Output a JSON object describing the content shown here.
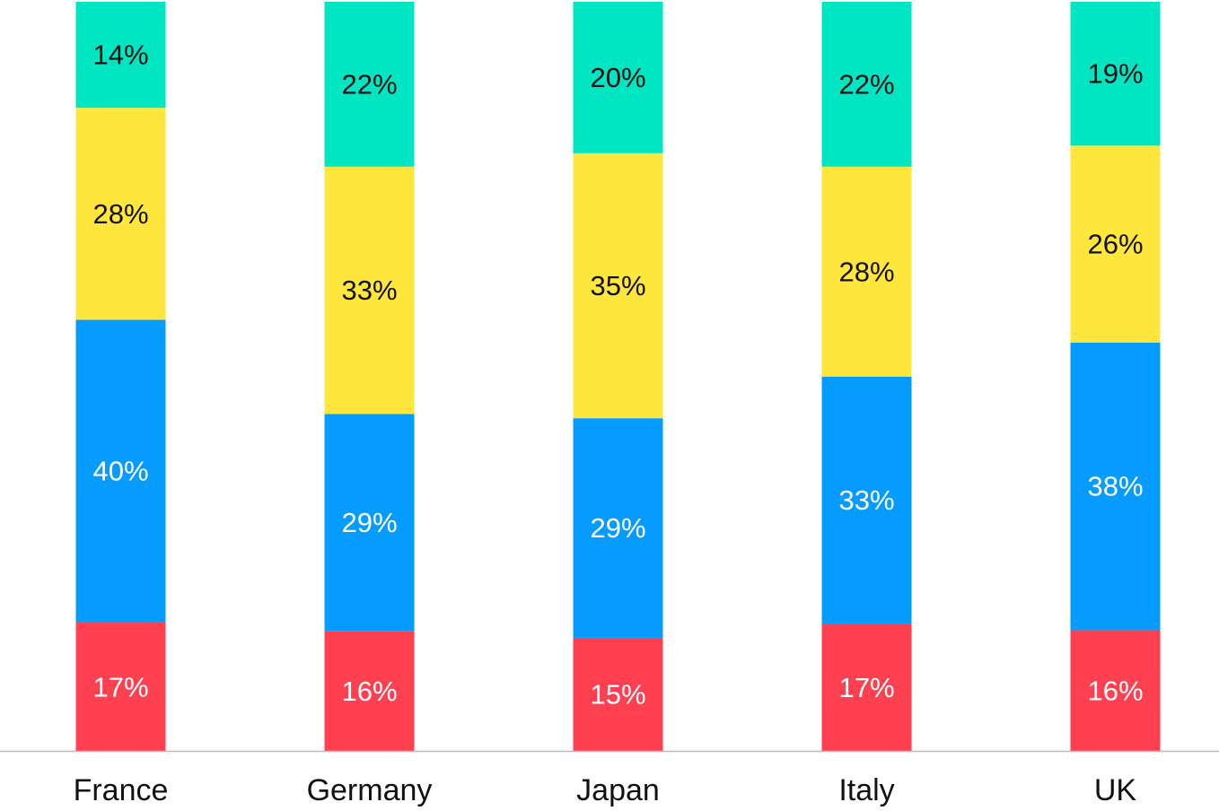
{
  "chart_data": {
    "type": "bar",
    "stacked": true,
    "categories": [
      "France",
      "Germany",
      "Japan",
      "Italy",
      "UK"
    ],
    "series": [
      {
        "color": "#ff4050",
        "label_color": "#ffffff",
        "values": [
          17,
          16,
          15,
          17,
          16
        ],
        "labels": [
          "17%",
          "16%",
          "15%",
          "17%",
          "16%"
        ]
      },
      {
        "color": "#069cff",
        "label_color": "#ffffff",
        "values": [
          40,
          29,
          29,
          33,
          38
        ],
        "labels": [
          "40%",
          "29%",
          "29%",
          "33%",
          "38%"
        ]
      },
      {
        "color": "#ffe63c",
        "label_color": "#111111",
        "values": [
          28,
          33,
          35,
          28,
          26
        ],
        "labels": [
          "28%",
          "33%",
          "35%",
          "28%",
          "26%"
        ]
      },
      {
        "color": "#00e6c3",
        "label_color": "#111111",
        "values": [
          14,
          22,
          20,
          22,
          19
        ],
        "labels": [
          "14%",
          "22%",
          "20%",
          "22%",
          "19%"
        ]
      }
    ],
    "ylim": [
      0,
      100
    ],
    "grid": false,
    "legend": "none",
    "axis_line_color": "#bbbbbb"
  }
}
